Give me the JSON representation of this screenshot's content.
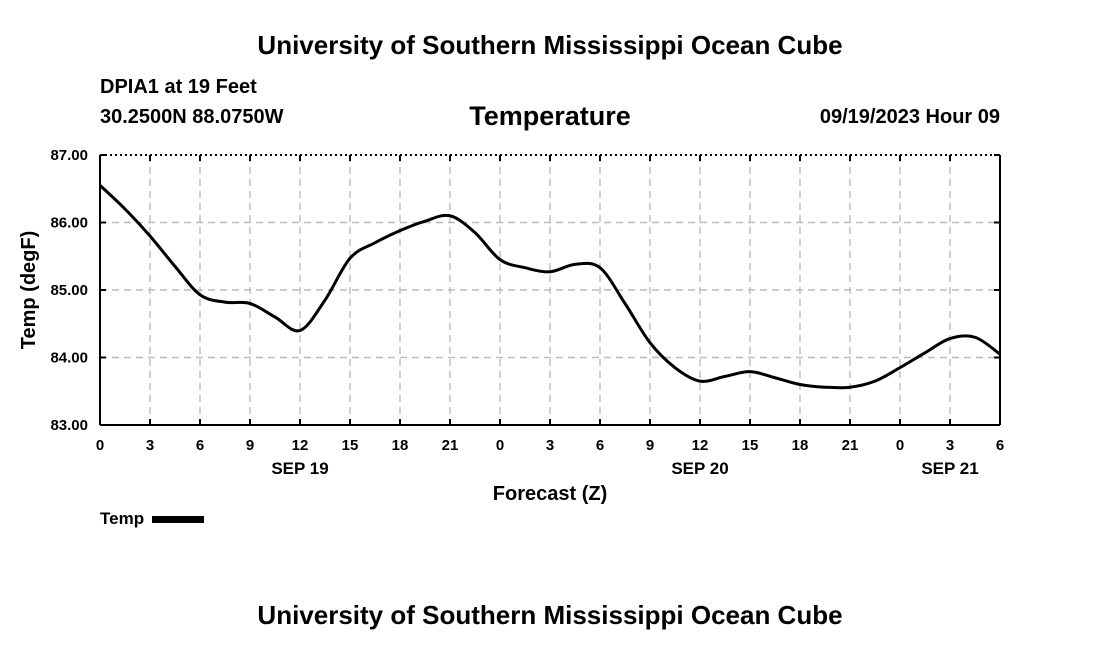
{
  "header": {
    "title": "University of Southern Mississippi Ocean Cube",
    "station": "DPIA1 at 19 Feet",
    "coords": "30.2500N  88.0750W",
    "chart_title": "Temperature",
    "run_time": "09/19/2023 Hour 09"
  },
  "footer": {
    "title": "University of Southern Mississippi Ocean Cube"
  },
  "legend": {
    "label": "Temp"
  },
  "colors": {
    "line": "#000000",
    "grid": "#bbbbbb",
    "background": "#ffffff"
  },
  "chart_data": {
    "type": "line",
    "title": "Temperature",
    "xlabel": "Forecast (Z)",
    "ylabel": "Temp (degF)",
    "ylim": [
      83.0,
      87.0
    ],
    "yticks": [
      "83.00",
      "84.00",
      "85.00",
      "86.00",
      "87.00"
    ],
    "xlim": [
      0,
      54
    ],
    "xticks": [
      "0",
      "3",
      "6",
      "9",
      "12",
      "15",
      "18",
      "21",
      "0",
      "3",
      "6",
      "9",
      "12",
      "15",
      "18",
      "21",
      "0",
      "3",
      "6"
    ],
    "date_labels": [
      {
        "label": "SEP 19",
        "hour": 12
      },
      {
        "label": "SEP 20",
        "hour": 36
      },
      {
        "label": "SEP 21",
        "hour": 51
      }
    ],
    "grid": true,
    "series": [
      {
        "name": "Temp",
        "x": [
          0,
          1.5,
          3,
          4.5,
          6,
          7.5,
          9,
          10.5,
          12,
          13.5,
          15,
          16.5,
          18,
          19.5,
          21,
          22.5,
          24,
          25.5,
          27,
          28.5,
          30,
          31.5,
          33,
          34.5,
          36,
          37.5,
          39,
          40.5,
          42,
          43.5,
          45,
          46.5,
          48,
          49.5,
          51,
          52.5,
          54
        ],
        "values": [
          86.55,
          86.2,
          85.8,
          85.35,
          84.93,
          84.82,
          84.8,
          84.6,
          84.4,
          84.85,
          85.47,
          85.7,
          85.88,
          86.02,
          86.1,
          85.85,
          85.45,
          85.33,
          85.27,
          85.38,
          85.33,
          84.8,
          84.22,
          83.85,
          83.65,
          83.72,
          83.79,
          83.7,
          83.6,
          83.56,
          83.56,
          83.65,
          83.85,
          84.07,
          84.28,
          84.3,
          84.05
        ]
      }
    ]
  }
}
